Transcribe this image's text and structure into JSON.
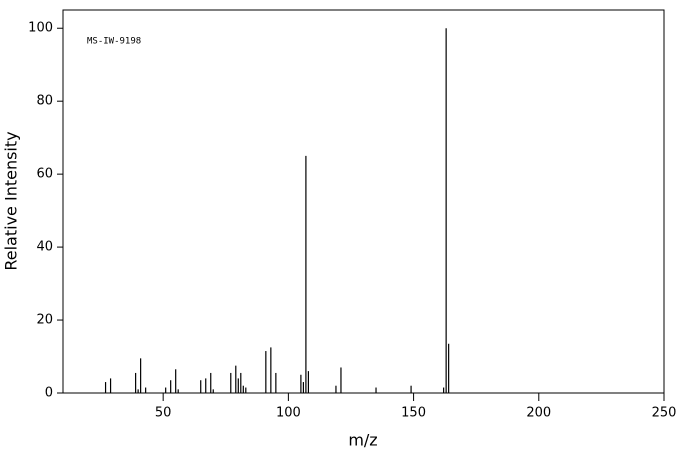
{
  "chart_data": {
    "type": "bar",
    "title": "MS-IW-9198",
    "x_label": "m/z",
    "y_label": "Relative Intensity",
    "x": [
      27,
      29,
      39,
      40,
      41,
      43,
      51,
      53,
      55,
      56,
      65,
      67,
      69,
      70,
      77,
      79,
      80,
      81,
      82,
      83,
      91,
      93,
      95,
      105,
      106,
      107,
      108,
      119,
      121,
      135,
      149,
      162,
      163,
      164
    ],
    "values": [
      3,
      4,
      5.5,
      1,
      9.5,
      1.5,
      1.5,
      3.5,
      6.5,
      1,
      3.5,
      4,
      5.5,
      1,
      5.5,
      7.5,
      4,
      5.5,
      2,
      1.5,
      11.5,
      12.5,
      5.5,
      5,
      3,
      65,
      6,
      2,
      7,
      1.5,
      2,
      1.5,
      100,
      13.5
    ],
    "color": "#000000",
    "xlim": [
      10,
      250
    ],
    "xticks": [
      50,
      100,
      150,
      200,
      250
    ],
    "ylim": [
      0,
      105
    ],
    "yticks": [
      0,
      20,
      40,
      60,
      80,
      100
    ]
  }
}
